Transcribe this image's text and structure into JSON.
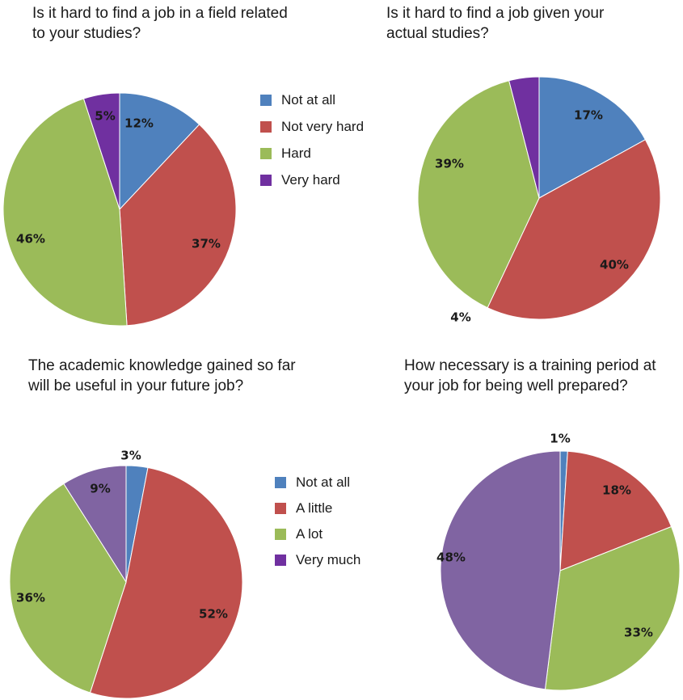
{
  "questions": [
    "Is it hard to find a job in a field related to your studies?",
    "Is it hard to find a job given your actual studies?",
    "The academic knowledge gained so far will be useful in your future job?",
    "How necessary is a training period at your job for being well prepared?"
  ],
  "legends": {
    "top": [
      "Not at all",
      "Not very hard",
      "Hard",
      "Very hard"
    ],
    "bottom": [
      "Not at all",
      "A little",
      "A lot",
      "Very much"
    ]
  },
  "colors": [
    "#4f81bd",
    "#c0504d",
    "#9bbb59",
    "#8064a2"
  ],
  "colors_alt": [
    "#4f81bd",
    "#c0504d",
    "#9bbb59",
    "#7030a0"
  ],
  "chart_data": [
    {
      "type": "pie",
      "title": "Is it hard to find a job in a field related to your studies?",
      "categories": [
        "Not at all",
        "Not very hard",
        "Hard",
        "Very hard"
      ],
      "values": [
        12,
        37,
        46,
        5
      ],
      "labels": [
        "12%",
        "37%",
        "46%",
        "5%"
      ],
      "legend": "right"
    },
    {
      "type": "pie",
      "title": "Is it hard to find a job given your actual studies?",
      "categories": [
        "Not at all",
        "Not very hard",
        "Hard",
        "Very hard"
      ],
      "values": [
        17,
        40,
        39,
        4
      ],
      "labels": [
        "17%",
        "40%",
        "39%",
        "4%"
      ]
    },
    {
      "type": "pie",
      "title": "The academic knowledge gained so far will be useful in your future job?",
      "categories": [
        "Not at all",
        "A little",
        "A lot",
        "Very much"
      ],
      "values": [
        3,
        52,
        36,
        9
      ],
      "labels": [
        "3%",
        "52%",
        "36%",
        "9%"
      ],
      "legend": "right"
    },
    {
      "type": "pie",
      "title": "How necessary is a training period at your job for being well prepared?",
      "categories": [
        "Not at all",
        "A little",
        "A lot",
        "Very much"
      ],
      "values": [
        1,
        18,
        33,
        48
      ],
      "labels": [
        "1%",
        "18%",
        "33%",
        "48%"
      ]
    }
  ]
}
